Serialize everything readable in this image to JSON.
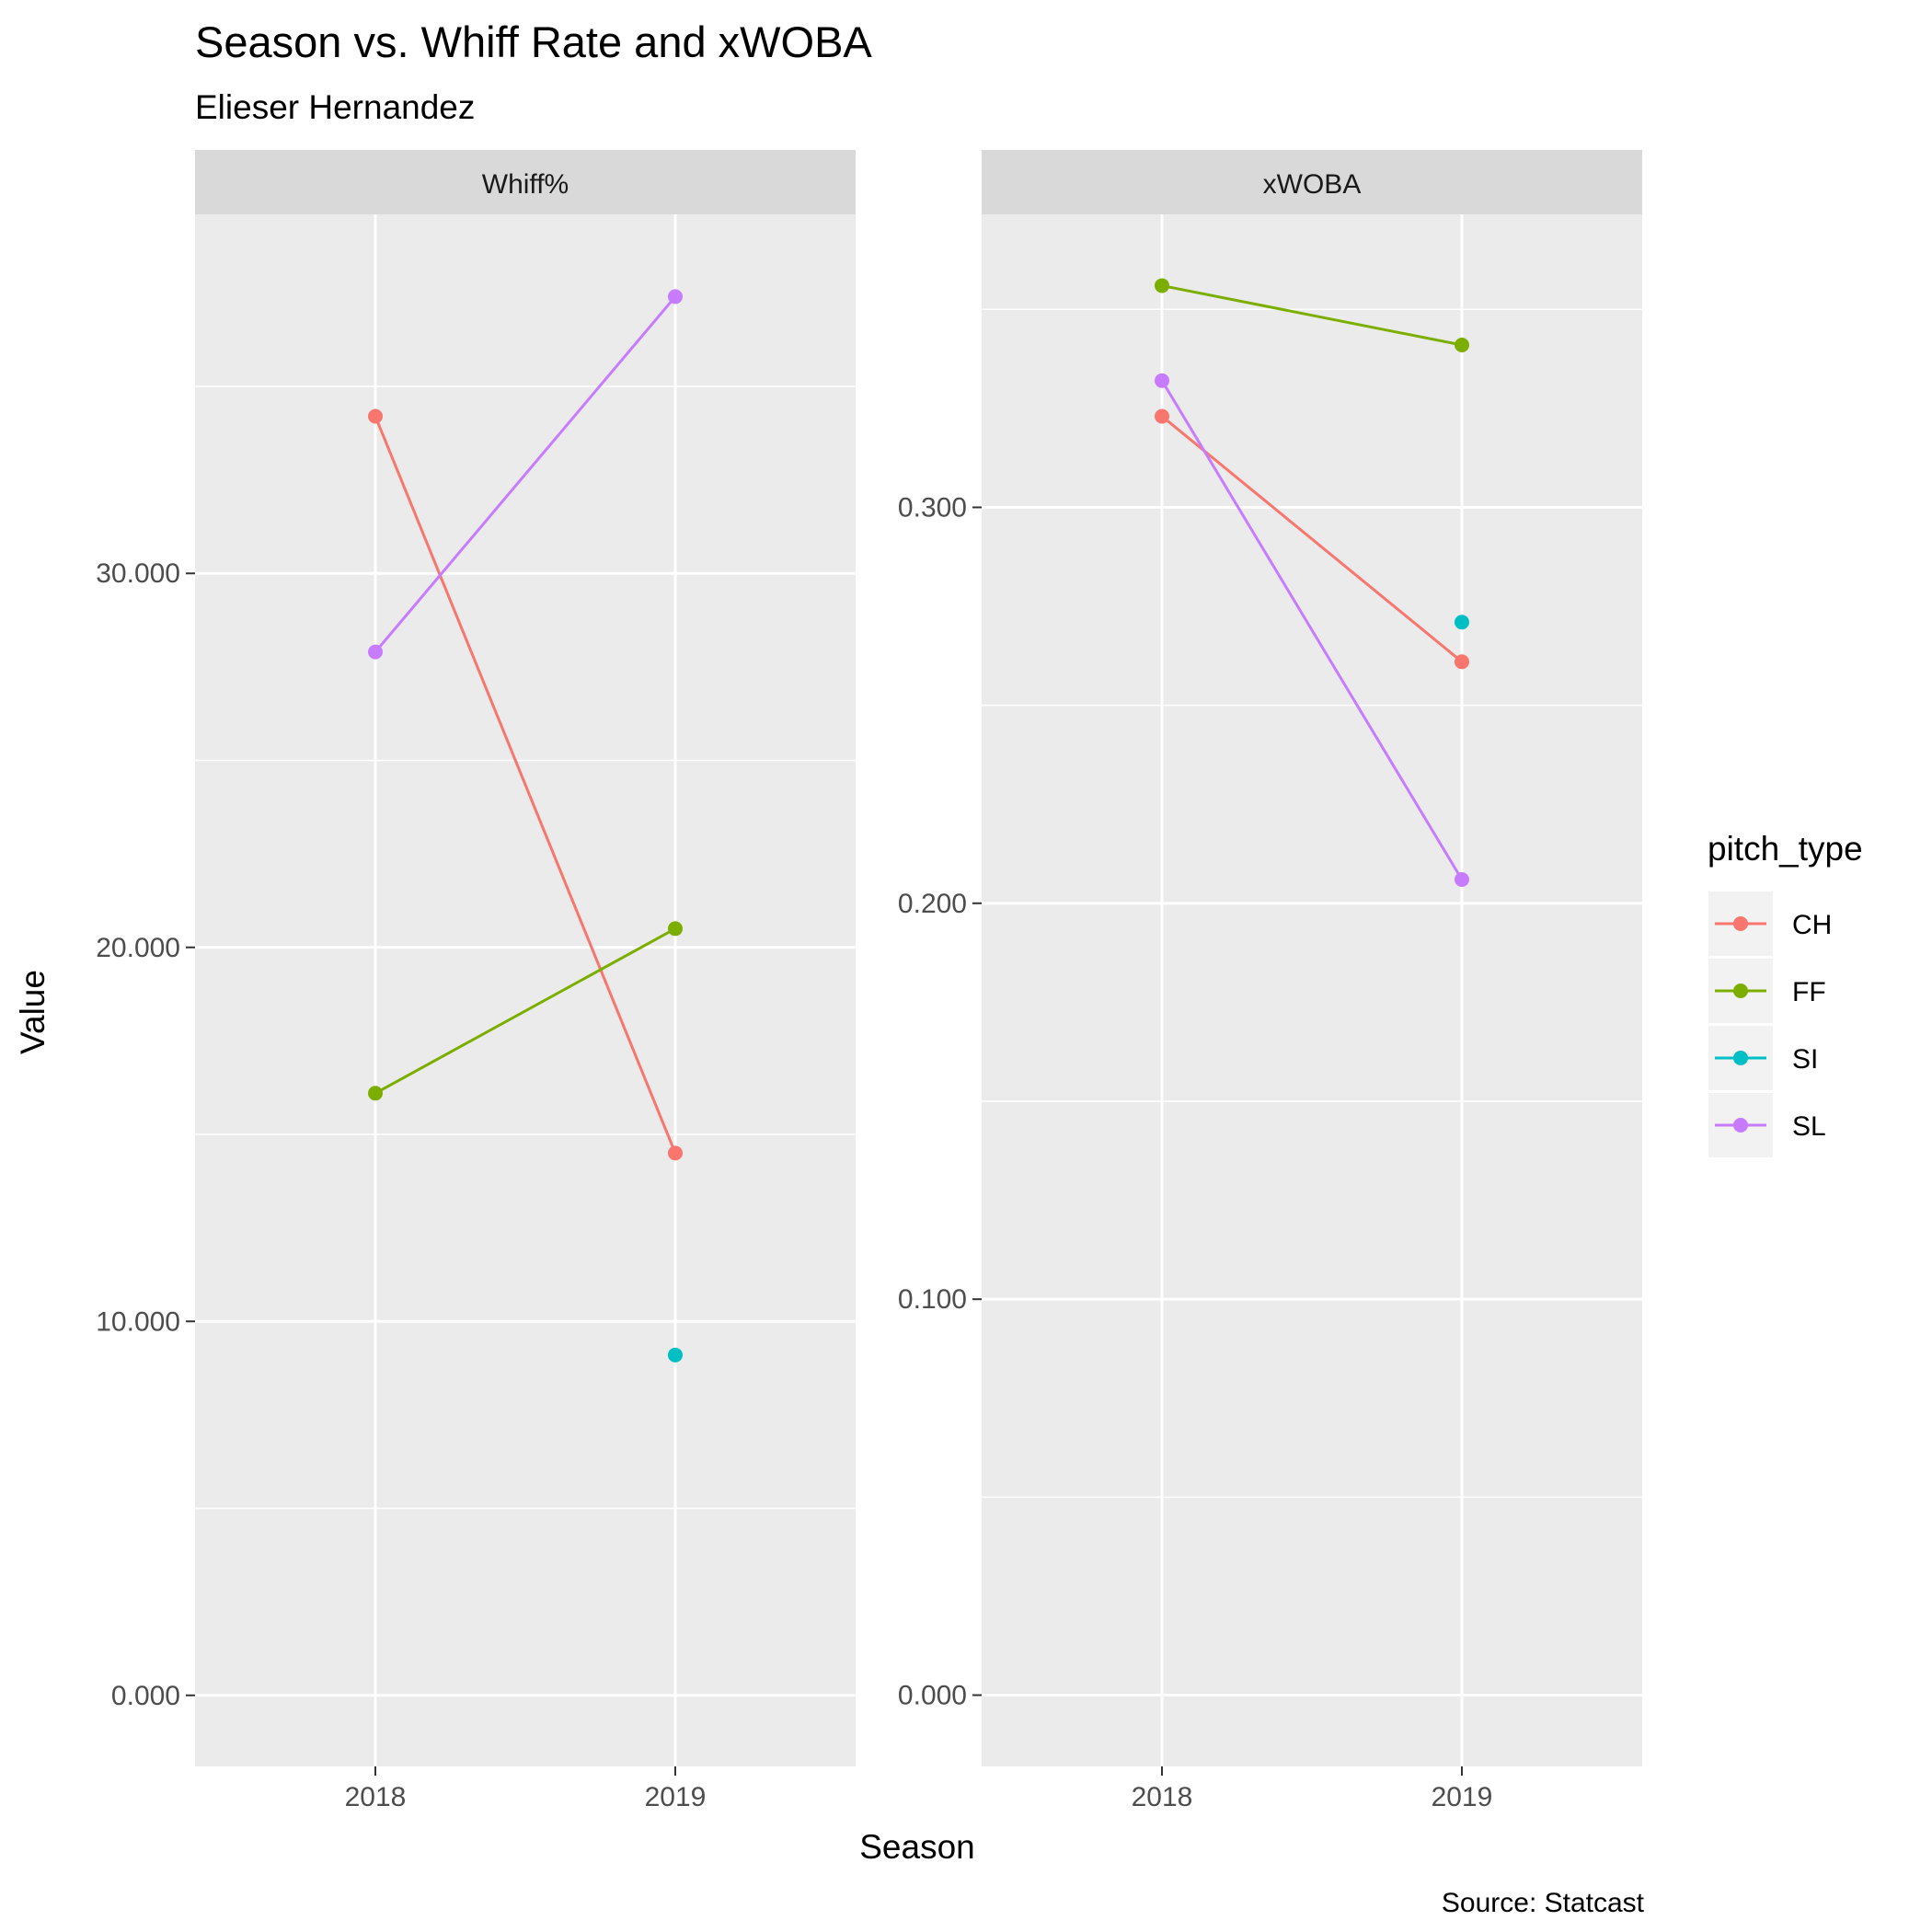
{
  "chart_data": {
    "type": "line",
    "title": "Season vs. Whiff Rate and xWOBA",
    "subtitle": "Elieser Hernandez",
    "xlabel": "Season",
    "ylabel": "Value",
    "caption": "Source: Statcast",
    "legend": {
      "title": "pitch_type",
      "placement": "right",
      "entries": [
        {
          "name": "CH",
          "color": "#F8766D"
        },
        {
          "name": "FF",
          "color": "#7CAE00"
        },
        {
          "name": "SI",
          "color": "#00BFC4"
        },
        {
          "name": "SL",
          "color": "#C77CFF"
        }
      ]
    },
    "x": [
      "2018",
      "2019"
    ],
    "grid": true,
    "panels": [
      {
        "name": "Whiff%",
        "ylim": [
          -1.9,
          39.6
        ],
        "y_ticks": [
          0,
          10,
          20,
          30
        ],
        "y_tick_labels": [
          "0.000",
          "10.000",
          "20.000",
          "30.000"
        ],
        "series": [
          {
            "name": "CH",
            "values": [
              34.2,
              14.5
            ]
          },
          {
            "name": "FF",
            "values": [
              16.1,
              20.5
            ]
          },
          {
            "name": "SI",
            "values": [
              null,
              9.1
            ]
          },
          {
            "name": "SL",
            "values": [
              27.9,
              37.4
            ]
          }
        ]
      },
      {
        "name": "xWOBA",
        "ylim": [
          -0.018,
          0.374
        ],
        "y_ticks": [
          0,
          0.1,
          0.2,
          0.3
        ],
        "y_tick_labels": [
          "0.000",
          "0.100",
          "0.200",
          "0.300"
        ],
        "series": [
          {
            "name": "CH",
            "values": [
              0.323,
              0.261
            ]
          },
          {
            "name": "FF",
            "values": [
              0.356,
              0.341
            ]
          },
          {
            "name": "SI",
            "values": [
              null,
              0.271
            ]
          },
          {
            "name": "SL",
            "values": [
              0.332,
              0.206
            ]
          }
        ]
      }
    ]
  }
}
